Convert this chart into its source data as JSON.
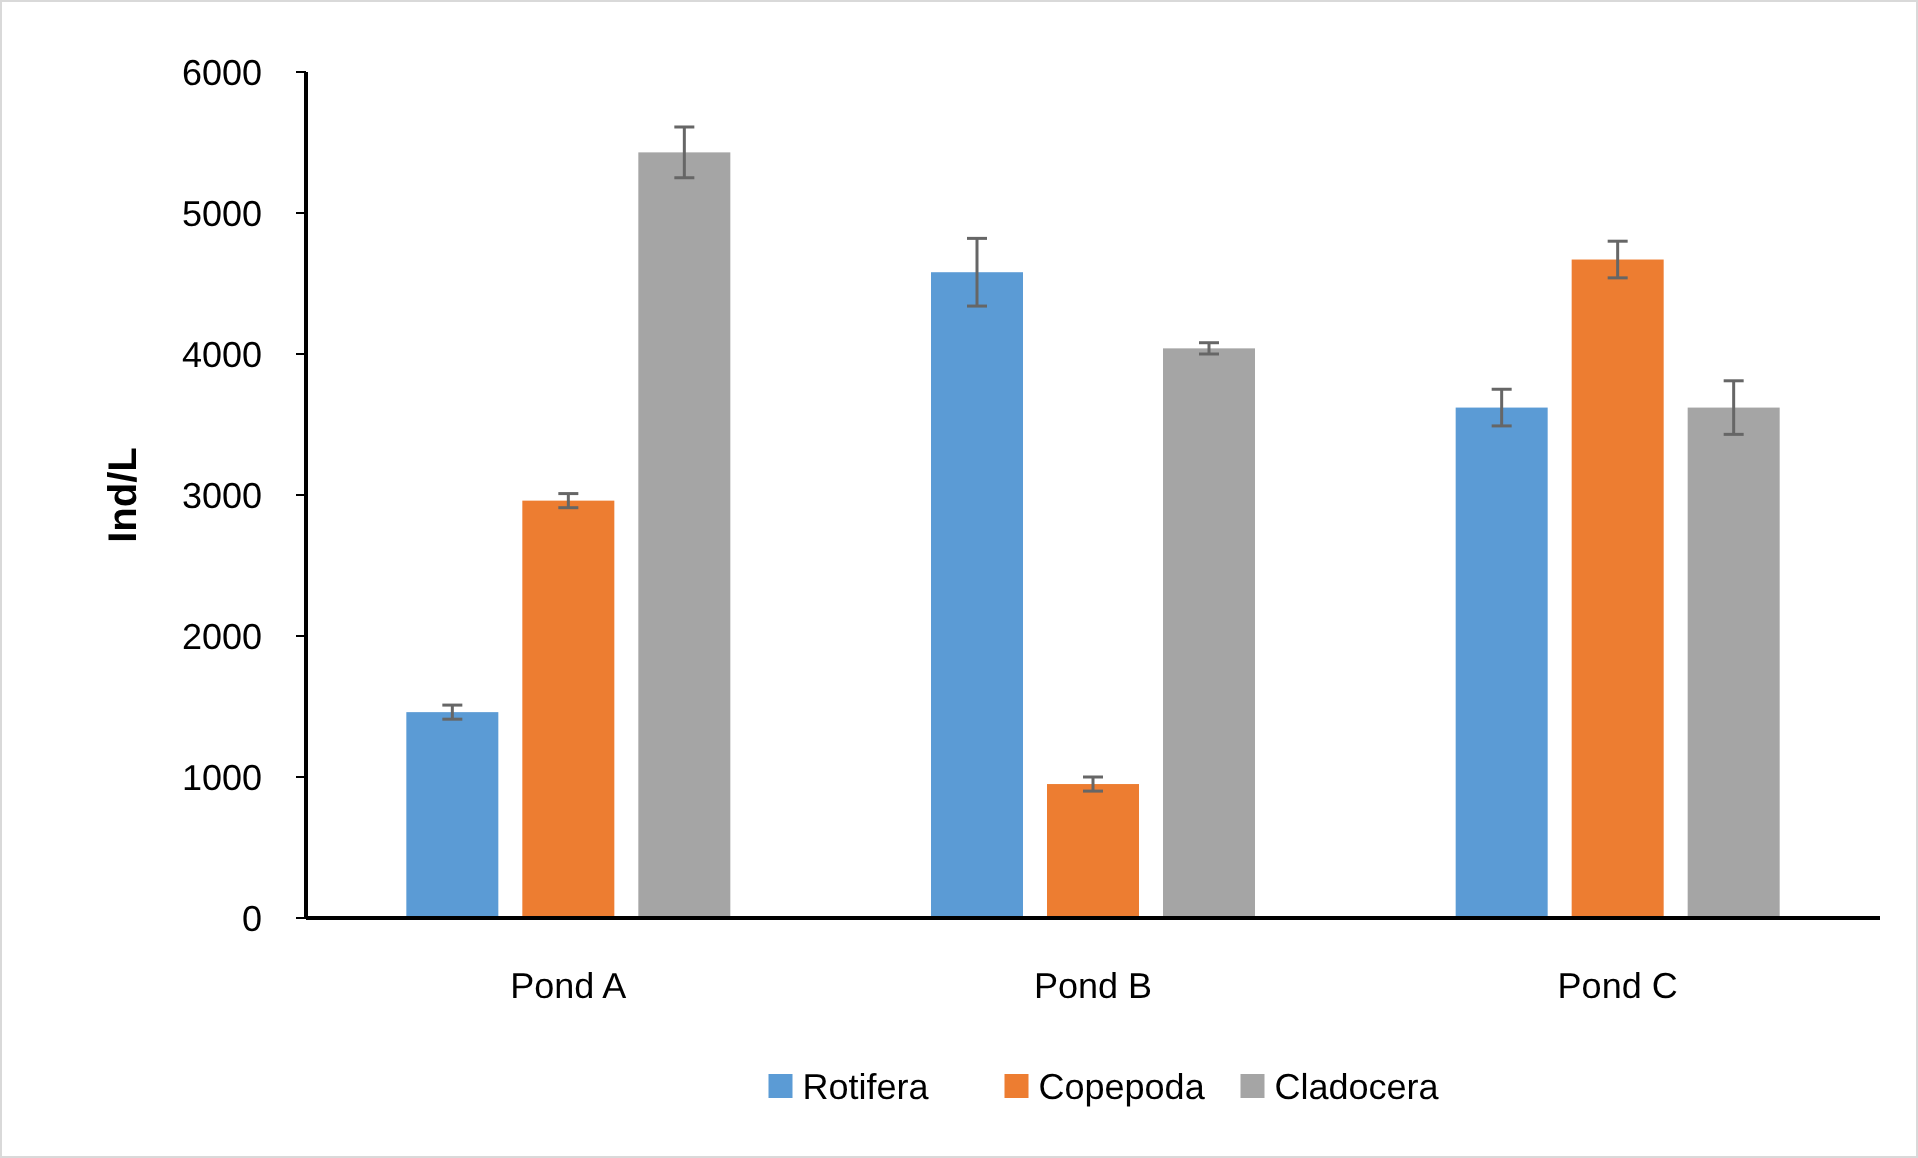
{
  "chart_data": {
    "type": "bar",
    "ylabel": "Ind/L",
    "categories": [
      "Pond A",
      "Pond B",
      "Pond C"
    ],
    "series": [
      {
        "name": "Rotifera",
        "color": "#5b9bd5",
        "values": [
          1460,
          4580,
          3620
        ],
        "errors": [
          50,
          240,
          130
        ]
      },
      {
        "name": "Copepoda",
        "color": "#ed7d31",
        "values": [
          2960,
          950,
          4670
        ],
        "errors": [
          50,
          50,
          130
        ]
      },
      {
        "name": "Cladocera",
        "color": "#a5a5a5",
        "values": [
          5430,
          4040,
          3620
        ],
        "errors": [
          180,
          40,
          190
        ]
      }
    ],
    "ylim": [
      0,
      6000
    ],
    "yticks": [
      0,
      1000,
      2000,
      3000,
      4000,
      5000,
      6000
    ],
    "grid": false,
    "legend": "bottom"
  }
}
